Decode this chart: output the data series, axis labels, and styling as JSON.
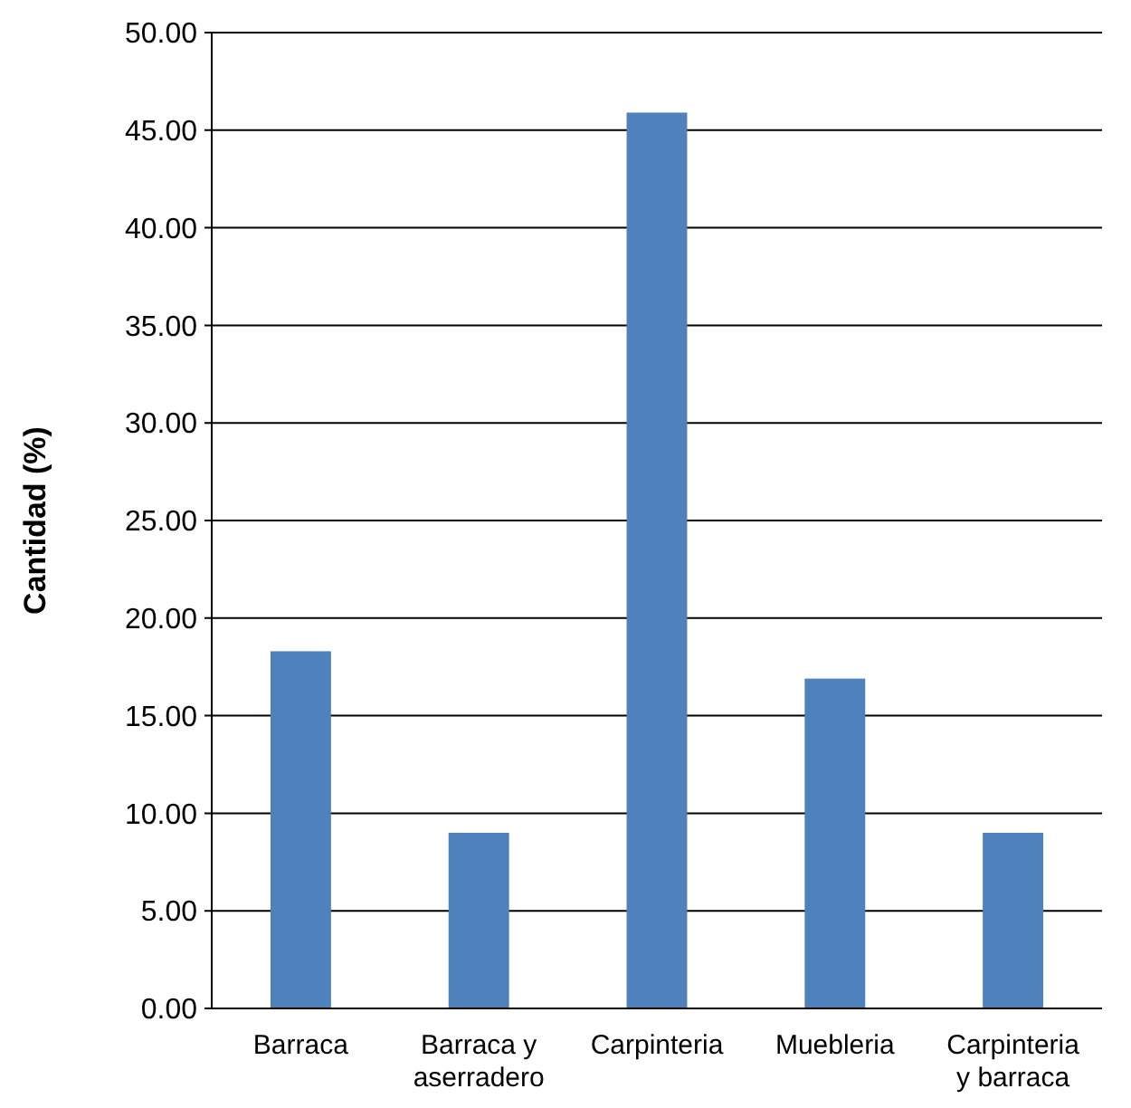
{
  "chart_data": {
    "type": "bar",
    "ylabel": "Cantidad (%)",
    "categories": [
      "Barraca",
      "Barraca y aserradero",
      "Carpinteria",
      "Muebleria",
      "Carpinteria y barraca"
    ],
    "values": [
      18.3,
      9.0,
      45.9,
      16.9,
      9.0
    ],
    "color": "#4f81bd",
    "ylim": [
      0,
      50
    ],
    "yticks": [
      {
        "value": 0,
        "label": "0.00"
      },
      {
        "value": 5,
        "label": "5.00"
      },
      {
        "value": 10,
        "label": "10.00"
      },
      {
        "value": 15,
        "label": "15.00"
      },
      {
        "value": 20,
        "label": "20.00"
      },
      {
        "value": 25,
        "label": "25.00"
      },
      {
        "value": 30,
        "label": "30.00"
      },
      {
        "value": 35,
        "label": "35.00"
      },
      {
        "value": 40,
        "label": "40.00"
      },
      {
        "value": 45,
        "label": "45.00"
      },
      {
        "value": 50,
        "label": "50.00"
      }
    ],
    "grid": "y"
  }
}
